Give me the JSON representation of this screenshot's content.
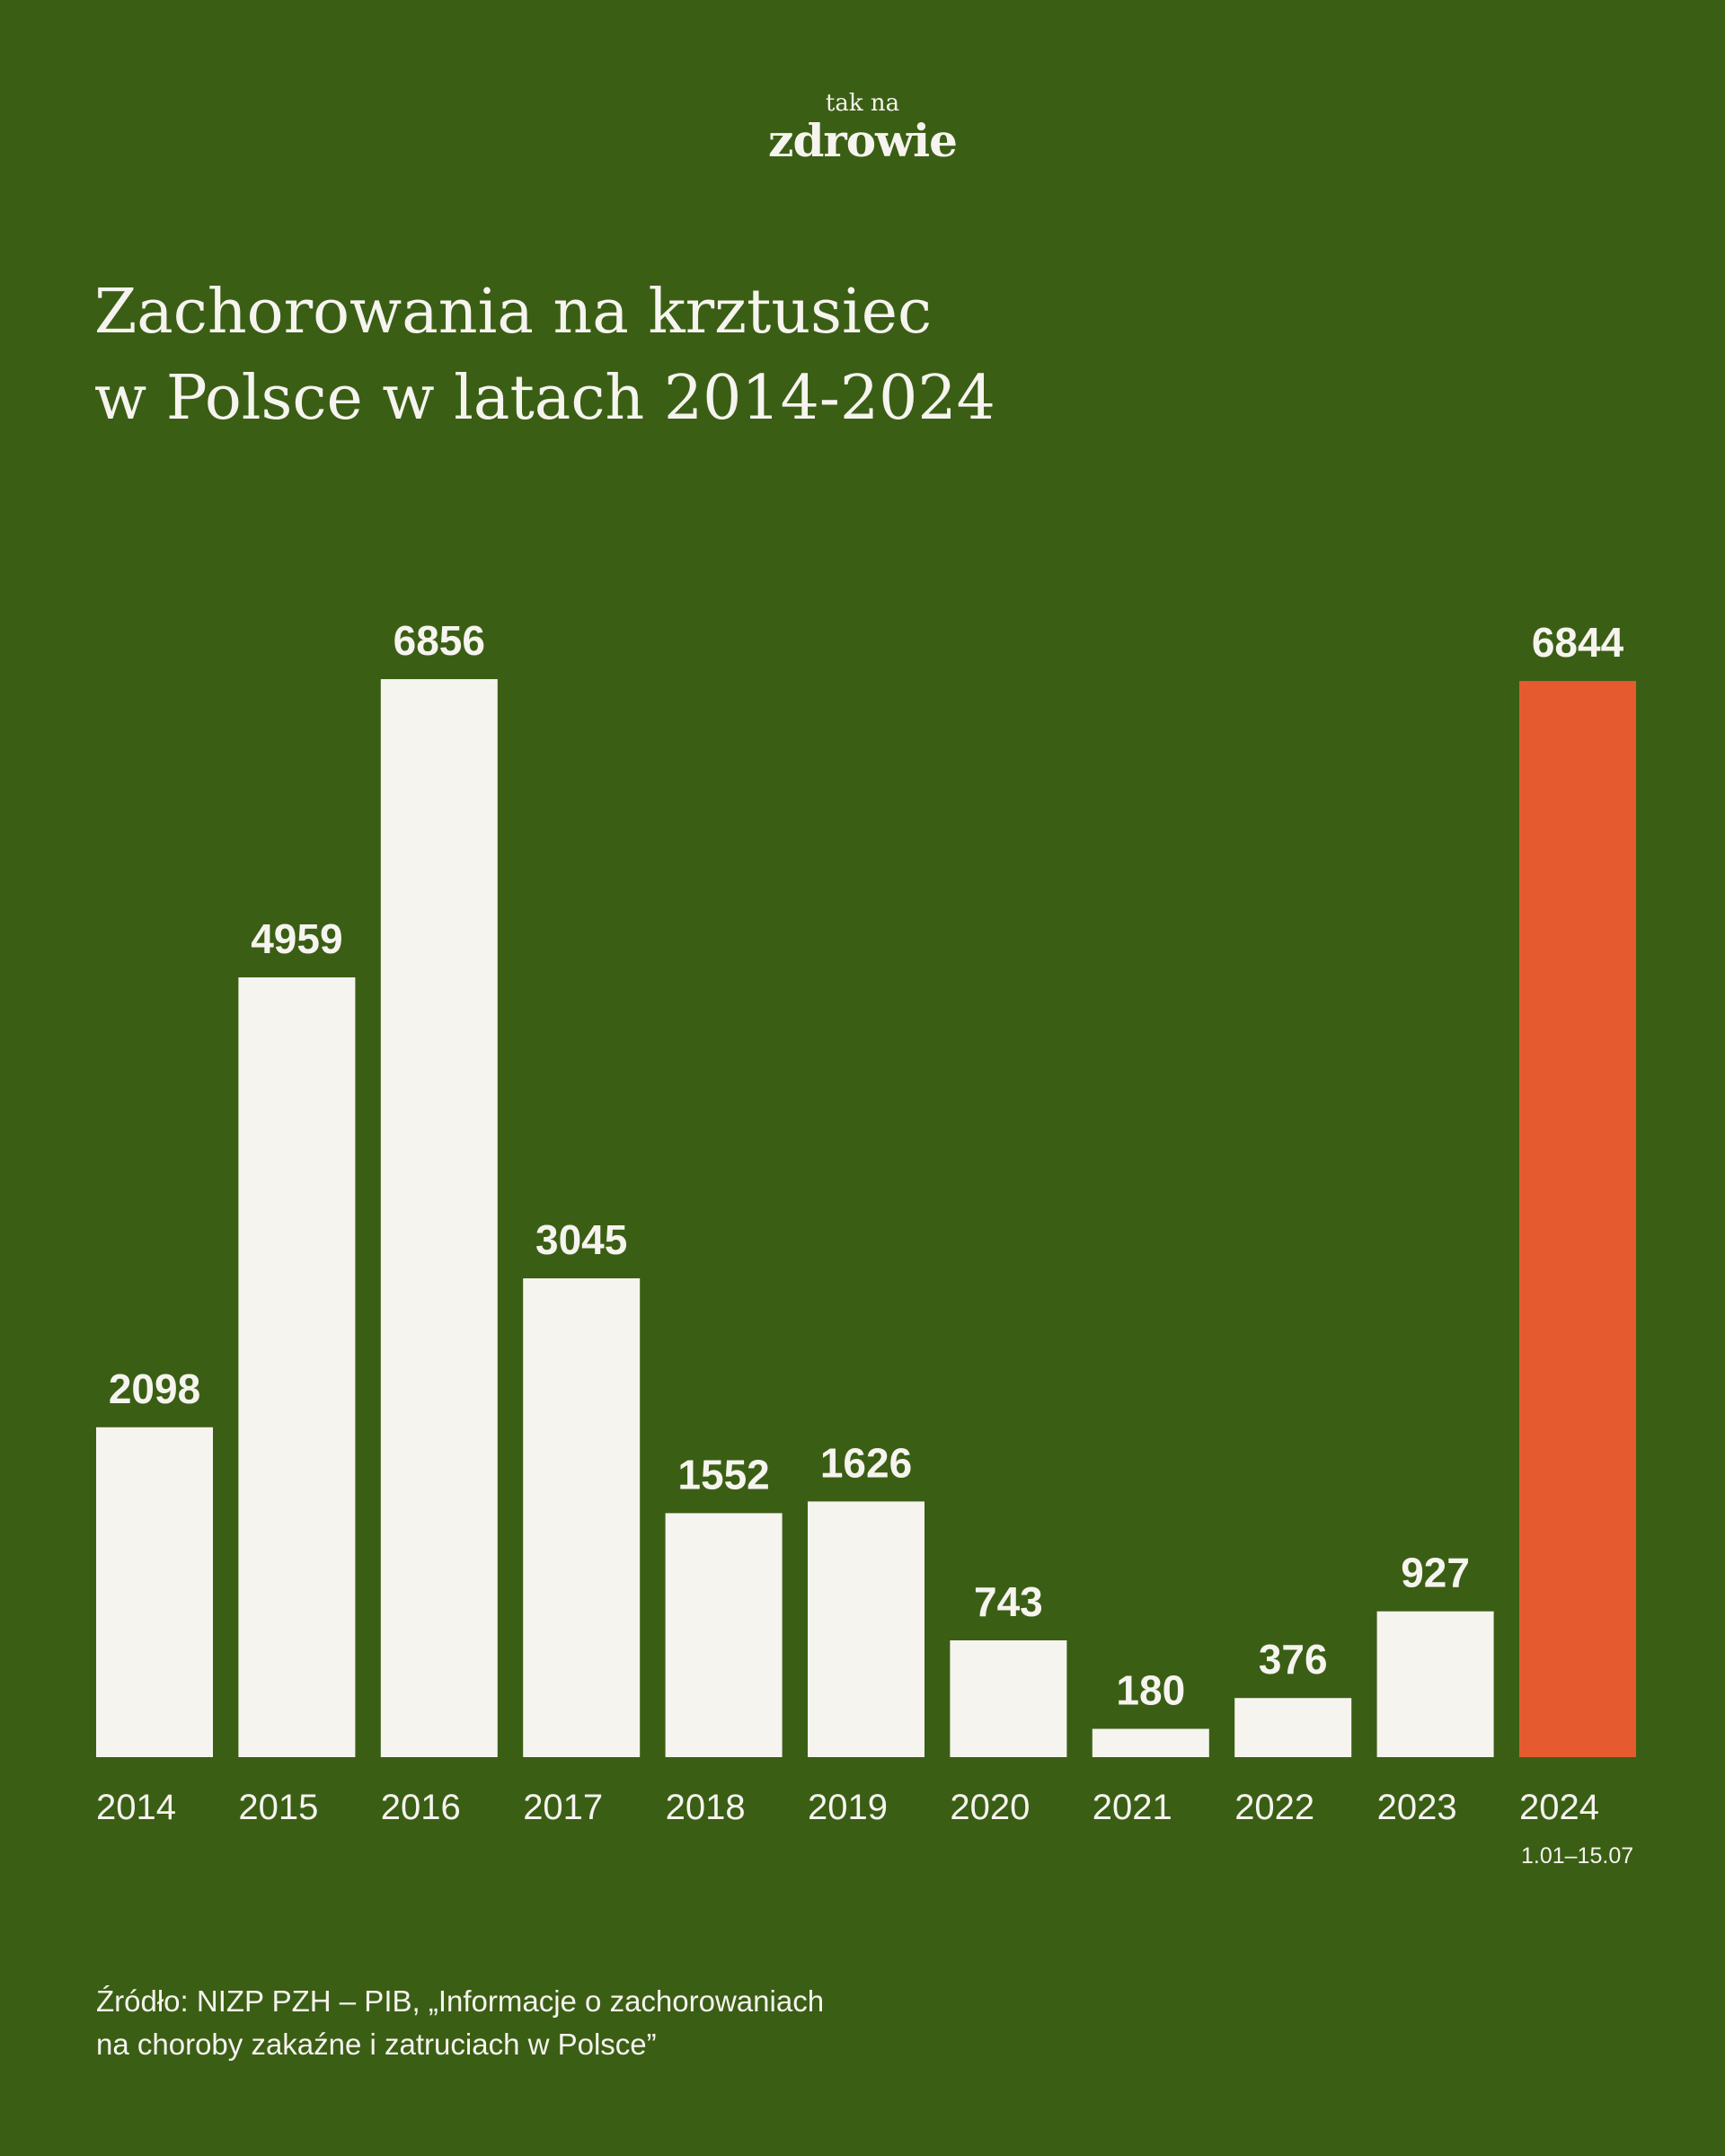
{
  "logo": {
    "line1": "tak na",
    "line2": "zdrowie"
  },
  "title": {
    "line1": "Zachorowania na krztusiec",
    "line2": "w Polsce w latach 2014-2024"
  },
  "chart_data": {
    "type": "bar",
    "title": "Zachorowania na krztusiec w Polsce w latach 2014-2024",
    "xlabel": "",
    "ylabel": "",
    "categories": [
      "2014",
      "2015",
      "2016",
      "2017",
      "2018",
      "2019",
      "2020",
      "2021",
      "2022",
      "2023",
      "2024"
    ],
    "values": [
      2098,
      4959,
      6856,
      3045,
      1552,
      1626,
      743,
      180,
      376,
      927,
      6844
    ],
    "category_notes": [
      "",
      "",
      "",
      "",
      "",
      "",
      "",
      "",
      "",
      "",
      "1.01–15.07"
    ],
    "colors": {
      "default": "#f6f4ef",
      "highlight": "#e65a2f",
      "background": "#3b5e15"
    },
    "highlight_index": 10,
    "grid": false,
    "legend": "none"
  },
  "source": {
    "line1": "Źródło: NIZP PZH – PIB, „Informacje o zachorowaniach",
    "line2": "na choroby zakaźne i zatruciach w Polsce”"
  }
}
